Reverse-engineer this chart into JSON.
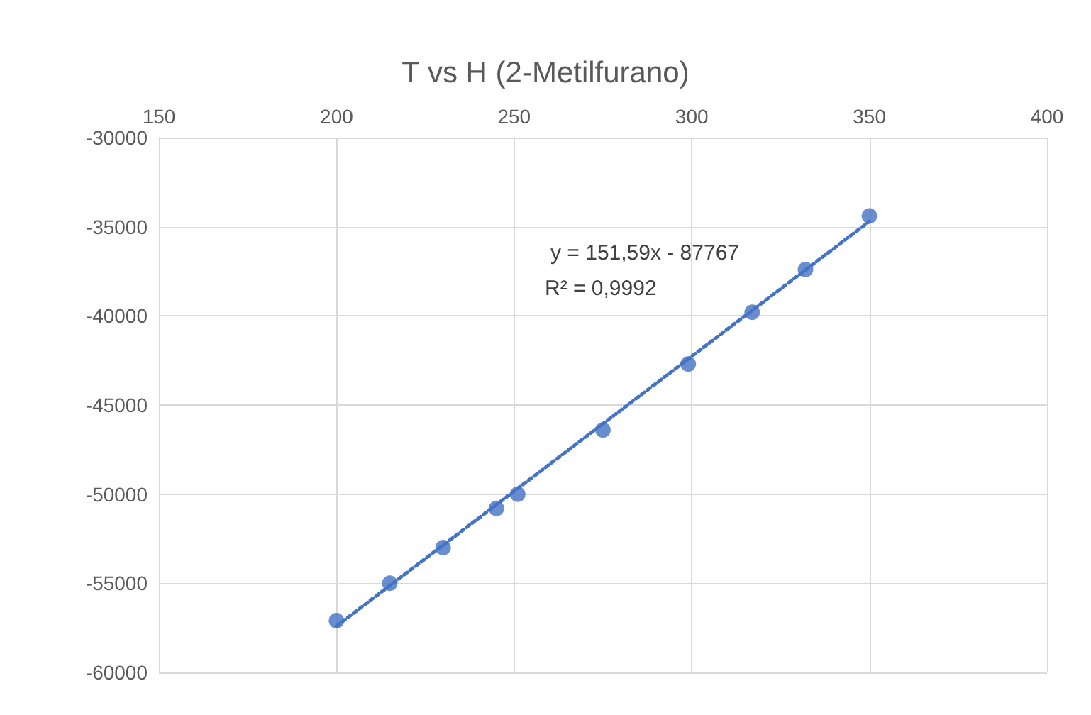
{
  "chart_data": {
    "type": "scatter",
    "title": "T vs H (2-Metilfurano)",
    "xlim": [
      150,
      400
    ],
    "xticks": [
      150,
      200,
      250,
      300,
      350,
      400
    ],
    "ylim": [
      -60000,
      -30000
    ],
    "yticks": [
      -60000,
      -55000,
      -50000,
      -45000,
      -40000,
      -35000,
      -30000
    ],
    "grid": true,
    "marker": "circle",
    "series": [
      {
        "color": "#4472c4",
        "x": [
          200,
          215,
          230,
          245,
          251,
          275,
          299,
          317,
          332,
          350
        ],
        "values": [
          -57100,
          -55000,
          -53000,
          -50800,
          -50000,
          -46400,
          -42700,
          -39800,
          -37400,
          -34400
        ]
      },
      {
        "type": "line",
        "color": "#4472c4",
        "line_style": "dotted",
        "marker": "none",
        "x": [
          200,
          350
        ],
        "values": [
          -57400,
          -34700
        ]
      }
    ],
    "annotations": [
      "y = 151,59x - 87767",
      "R² = 0,9992"
    ]
  }
}
